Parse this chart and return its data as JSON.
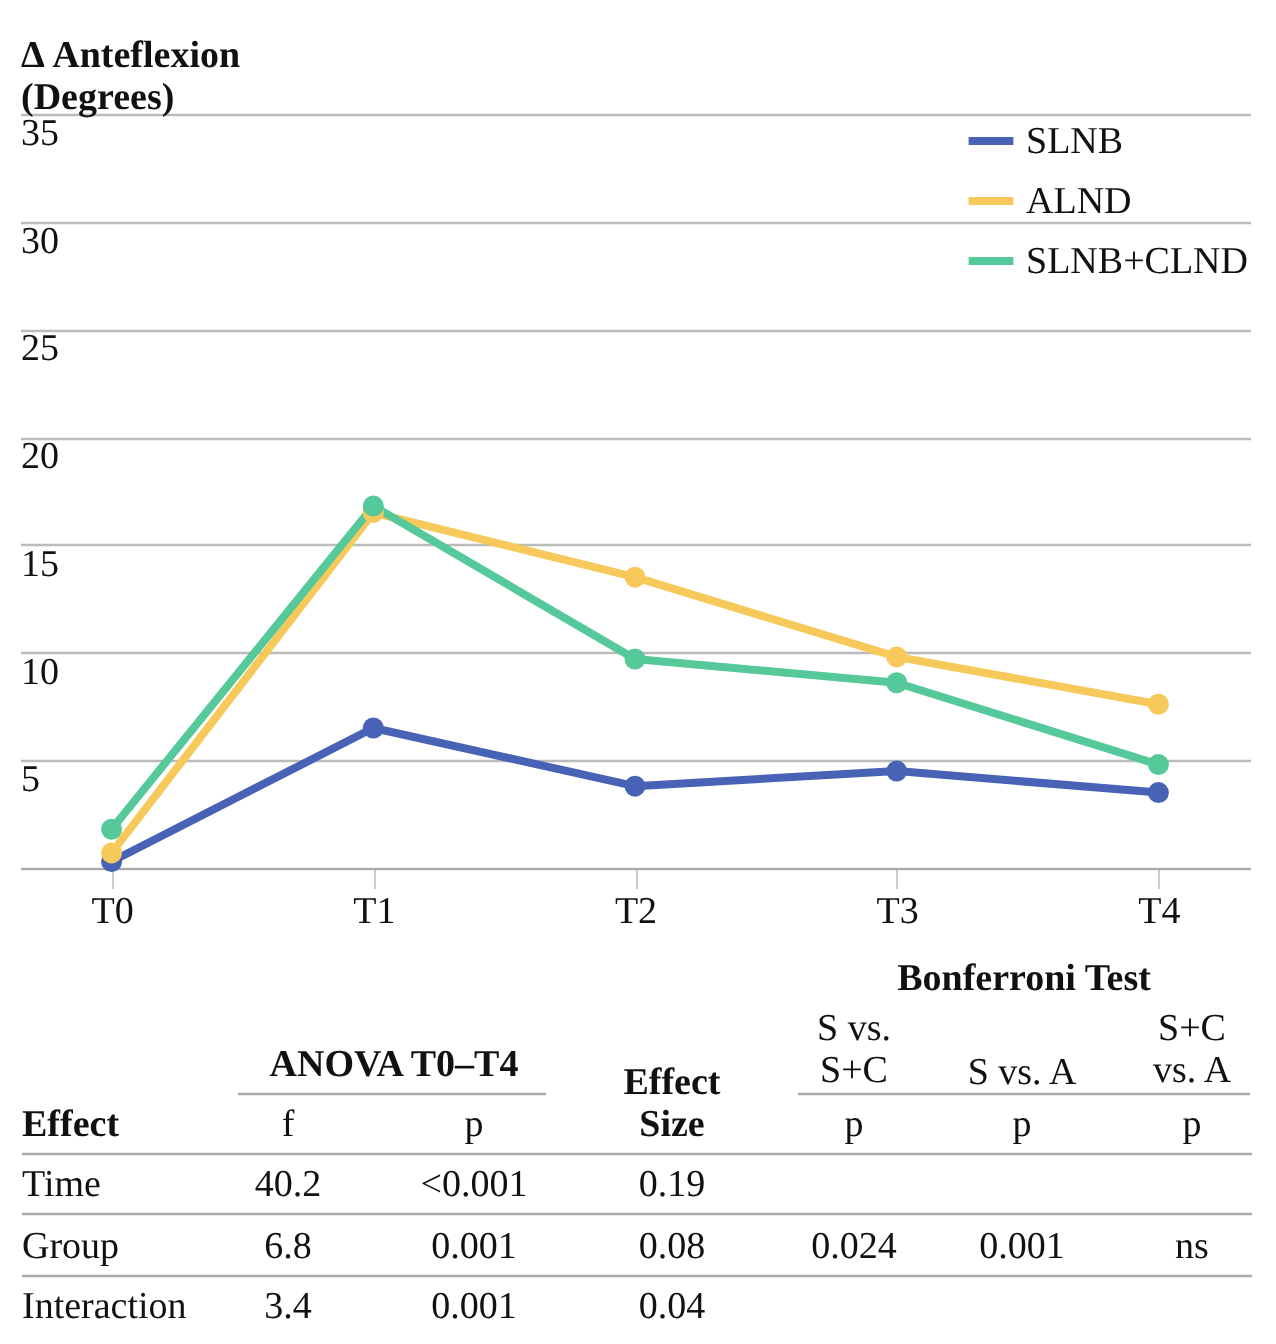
{
  "chart_data": [
    {
      "type": "line",
      "ylabel": "Δ Anteflexion\n(Degrees)",
      "categories": [
        "T0",
        "T1",
        "T2",
        "T3",
        "T4"
      ],
      "series": [
        {
          "name": "SLNB",
          "color": "#4863b5",
          "values": [
            0.3,
            6.5,
            3.8,
            4.5,
            3.5
          ]
        },
        {
          "name": "ALND",
          "color": "#f7c95a",
          "values": [
            0.7,
            16.5,
            13.5,
            9.8,
            7.6
          ]
        },
        {
          "name": "SLNB+CLND",
          "color": "#56c99a",
          "values": [
            1.8,
            16.8,
            9.7,
            8.6,
            4.8
          ]
        }
      ],
      "ylim": [
        0,
        35
      ],
      "yticks": [
        {
          "value": 0,
          "label": null
        },
        5,
        10,
        15,
        20,
        25,
        30,
        35
      ],
      "grid": "y",
      "legend": "top right",
      "marker": "circle",
      "line_style": "solid"
    },
    {
      "type": "other",
      "annotations": [
        "Bonferroni Test",
        "S vs.\nS+C",
        "S vs. A",
        "S+C\nvs. A",
        "ANOVA T0–T4",
        "Effect\nSize",
        "Effect",
        "f",
        "p",
        "p",
        "p",
        "p",
        "Time",
        "40.2",
        "<0.001",
        "0.19",
        "Group",
        "6.8",
        "0.001",
        "0.08",
        "0.024",
        "0.001",
        "ns",
        "Interaction",
        "3.4",
        "0.001",
        "0.04"
      ]
    }
  ]
}
